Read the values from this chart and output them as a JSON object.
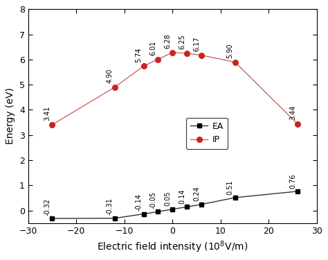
{
  "x": [
    -25,
    -12,
    -6,
    -3,
    0,
    3,
    6,
    13,
    26
  ],
  "EA": [
    -0.32,
    -0.31,
    -0.14,
    -0.05,
    0.05,
    0.14,
    0.24,
    0.51,
    0.76
  ],
  "IP": [
    3.41,
    4.9,
    5.74,
    6.01,
    6.28,
    6.25,
    6.17,
    5.9,
    3.44
  ],
  "EA_labels": [
    "-0.32",
    "-0.31",
    "-0.14",
    "-0.05",
    "0.05",
    "0.14",
    "0.24",
    "0.51",
    "0.76"
  ],
  "IP_labels": [
    "3.41",
    "4.90",
    "5.74",
    "6.01",
    "6.28",
    "6.25",
    "6.17",
    "5.90",
    "3.44"
  ],
  "EA_color": "#333333",
  "IP_color": "#cc2222",
  "IP_line_color": "#cc6666",
  "marker_EA": "s",
  "marker_IP": "o",
  "ylabel": "Energy (eV)",
  "xlim": [
    -30,
    30
  ],
  "ylim": [
    -0.5,
    8
  ],
  "yticks": [
    0,
    1,
    2,
    3,
    4,
    5,
    6,
    7,
    8
  ],
  "xticks": [
    -30,
    -20,
    -10,
    0,
    10,
    20,
    30
  ],
  "legend_labels": [
    "EA",
    "IP"
  ],
  "bg_color": "#ffffff",
  "EA_annotation_offsets": [
    [
      -1.0,
      0.12
    ],
    [
      -1.0,
      0.12
    ],
    [
      -1.0,
      0.12
    ],
    [
      -1.0,
      0.12
    ],
    [
      -1.0,
      0.12
    ],
    [
      -1.0,
      0.12
    ],
    [
      -1.0,
      0.12
    ],
    [
      -1.0,
      0.12
    ],
    [
      -1.0,
      0.12
    ]
  ],
  "IP_annotation_offsets": [
    [
      -1.0,
      0.15
    ],
    [
      -1.0,
      0.15
    ],
    [
      -1.0,
      0.15
    ],
    [
      -1.0,
      0.15
    ],
    [
      -1.0,
      0.15
    ],
    [
      -1.0,
      0.15
    ],
    [
      -1.0,
      0.15
    ],
    [
      -1.0,
      0.15
    ],
    [
      -1.0,
      0.15
    ]
  ]
}
